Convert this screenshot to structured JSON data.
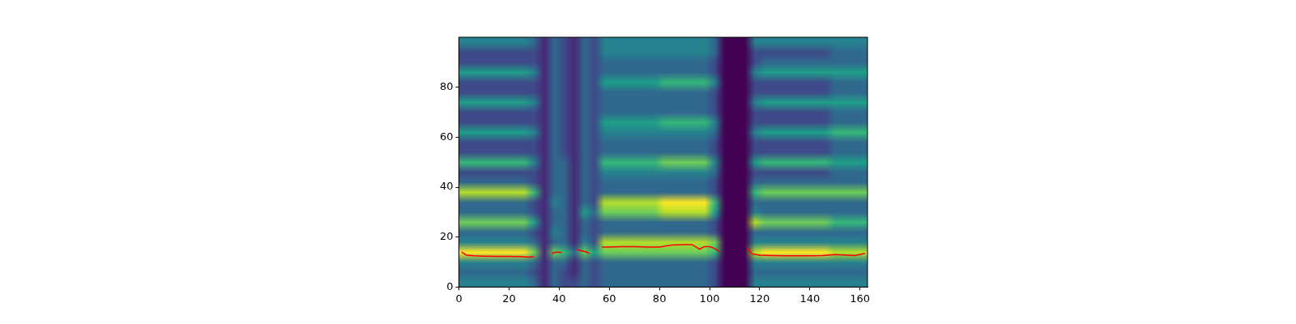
{
  "chart_data": {
    "type": "heatmap",
    "x_edges": [
      0,
      4,
      8,
      12,
      16,
      20,
      24,
      28,
      32,
      36,
      40,
      44,
      48,
      52,
      56,
      60,
      64,
      68,
      72,
      76,
      80,
      84,
      88,
      92,
      96,
      100,
      104,
      108,
      112,
      116,
      120,
      124,
      128,
      132,
      136,
      140,
      144,
      148,
      152,
      156,
      160,
      164
    ],
    "y_edges": [
      0,
      4,
      8,
      12,
      16,
      20,
      24,
      28,
      32,
      36,
      40,
      44,
      48,
      52,
      56,
      60,
      64,
      68,
      72,
      76,
      80,
      84,
      88,
      92,
      96,
      100
    ],
    "zlim": [
      0,
      9
    ],
    "cells": [
      [
        4,
        3,
        4,
        9,
        4,
        3,
        7,
        3,
        3,
        8,
        3,
        2,
        6,
        2,
        2,
        5,
        2,
        2,
        5,
        2,
        2,
        5,
        2,
        2,
        4
      ],
      [
        4,
        3,
        4,
        9,
        4,
        3,
        7,
        3,
        3,
        8,
        3,
        2,
        6,
        2,
        2,
        5,
        2,
        2,
        5,
        2,
        2,
        5,
        2,
        2,
        4
      ],
      [
        4,
        3,
        4,
        9,
        4,
        3,
        7,
        3,
        3,
        8,
        3,
        2,
        6,
        2,
        2,
        5,
        2,
        2,
        5,
        2,
        2,
        5,
        2,
        2,
        4
      ],
      [
        4,
        3,
        4,
        9,
        4,
        3,
        7,
        3,
        3,
        8,
        3,
        2,
        6,
        2,
        2,
        5,
        2,
        2,
        5,
        2,
        2,
        5,
        2,
        2,
        4
      ],
      [
        4,
        3,
        4,
        9,
        4,
        3,
        7,
        3,
        3,
        8,
        3,
        2,
        6,
        2,
        2,
        5,
        2,
        2,
        5,
        2,
        2,
        5,
        2,
        2,
        4
      ],
      [
        4,
        3,
        4,
        9,
        4,
        3,
        7,
        3,
        3,
        8,
        3,
        2,
        6,
        2,
        2,
        5,
        2,
        2,
        5,
        2,
        2,
        5,
        2,
        2,
        4
      ],
      [
        4,
        3,
        4,
        9,
        4,
        3,
        7,
        3,
        3,
        8,
        3,
        2,
        6,
        2,
        2,
        5,
        2,
        2,
        5,
        2,
        2,
        5,
        2,
        2,
        4
      ],
      [
        3,
        2,
        3,
        7,
        3,
        2,
        5,
        2,
        2,
        6,
        2,
        2,
        4,
        2,
        2,
        4,
        2,
        2,
        4,
        2,
        2,
        4,
        2,
        2,
        3
      ],
      [
        1,
        1,
        1,
        1,
        1,
        1,
        1,
        1,
        1,
        1,
        1,
        1,
        1,
        1,
        1,
        1,
        1,
        1,
        1,
        1,
        1,
        1,
        1,
        1,
        1
      ],
      [
        3,
        3,
        3,
        7,
        3,
        4,
        3,
        3,
        4,
        3,
        3,
        3,
        3,
        3,
        3,
        3,
        3,
        3,
        3,
        3,
        3,
        3,
        3,
        3,
        3
      ],
      [
        2,
        2,
        3,
        6,
        3,
        3,
        3,
        3,
        3,
        3,
        3,
        3,
        3,
        2,
        2,
        2,
        2,
        2,
        2,
        2,
        2,
        2,
        2,
        2,
        2
      ],
      [
        2,
        1,
        1,
        3,
        1,
        1,
        1,
        1,
        1,
        1,
        1,
        1,
        1,
        1,
        1,
        1,
        1,
        1,
        1,
        1,
        1,
        1,
        1,
        1,
        1
      ],
      [
        3,
        3,
        3,
        7,
        4,
        3,
        3,
        5,
        3,
        3,
        3,
        3,
        3,
        3,
        3,
        3,
        3,
        3,
        3,
        3,
        3,
        3,
        3,
        3,
        3
      ],
      [
        2,
        2,
        2,
        5,
        2,
        2,
        2,
        3,
        2,
        2,
        2,
        2,
        2,
        2,
        2,
        2,
        2,
        2,
        2,
        2,
        2,
        2,
        2,
        2,
        2
      ],
      [
        3,
        3,
        3,
        7,
        8,
        3,
        3,
        7,
        8,
        3,
        3,
        4,
        6,
        3,
        3,
        4,
        5,
        3,
        3,
        3,
        5,
        3,
        3,
        4,
        4
      ],
      [
        3,
        3,
        3,
        7,
        8,
        3,
        3,
        7,
        8,
        3,
        3,
        4,
        6,
        3,
        3,
        4,
        5,
        3,
        3,
        3,
        5,
        3,
        3,
        4,
        4
      ],
      [
        3,
        3,
        3,
        7,
        8,
        3,
        3,
        7,
        8,
        3,
        3,
        4,
        6,
        3,
        3,
        4,
        5,
        3,
        3,
        3,
        5,
        3,
        3,
        4,
        4
      ],
      [
        3,
        3,
        3,
        7,
        8,
        3,
        3,
        7,
        8,
        3,
        3,
        4,
        6,
        3,
        3,
        4,
        5,
        3,
        3,
        3,
        5,
        3,
        3,
        4,
        4
      ],
      [
        3,
        3,
        3,
        7,
        8,
        3,
        3,
        7,
        8,
        3,
        3,
        4,
        6,
        3,
        3,
        4,
        5,
        3,
        3,
        3,
        5,
        3,
        3,
        4,
        4
      ],
      [
        3,
        3,
        3,
        7,
        8,
        3,
        3,
        7,
        8,
        3,
        3,
        4,
        6,
        3,
        3,
        4,
        5,
        3,
        3,
        3,
        5,
        3,
        3,
        4,
        4
      ],
      [
        3,
        3,
        3,
        7,
        8,
        3,
        3,
        8,
        9,
        3,
        3,
        4,
        7,
        3,
        3,
        4,
        6,
        3,
        3,
        3,
        6,
        3,
        3,
        4,
        4
      ],
      [
        3,
        3,
        3,
        7,
        8,
        3,
        3,
        8,
        9,
        3,
        3,
        4,
        7,
        3,
        3,
        4,
        6,
        3,
        3,
        3,
        6,
        3,
        3,
        4,
        4
      ],
      [
        3,
        3,
        3,
        7,
        8,
        3,
        3,
        8,
        9,
        3,
        3,
        4,
        7,
        3,
        3,
        4,
        6,
        3,
        3,
        3,
        6,
        3,
        3,
        4,
        4
      ],
      [
        3,
        3,
        3,
        7,
        8,
        3,
        3,
        8,
        9,
        3,
        3,
        4,
        7,
        3,
        3,
        4,
        6,
        3,
        3,
        3,
        6,
        3,
        3,
        4,
        4
      ],
      [
        3,
        3,
        3,
        7,
        8,
        3,
        3,
        8,
        9,
        3,
        3,
        4,
        7,
        3,
        3,
        4,
        6,
        3,
        3,
        3,
        6,
        3,
        3,
        4,
        4
      ],
      [
        2,
        2,
        2,
        6,
        7,
        2,
        2,
        5,
        6,
        2,
        2,
        3,
        4,
        2,
        2,
        3,
        4,
        2,
        2,
        2,
        4,
        2,
        2,
        3,
        3
      ],
      [
        0,
        0,
        0,
        0,
        0,
        0,
        0,
        0,
        0,
        0,
        0,
        0,
        0,
        0,
        0,
        0,
        0,
        0,
        0,
        0,
        0,
        0,
        0,
        0,
        0
      ],
      [
        0,
        0,
        0,
        0,
        0,
        0,
        0,
        0,
        0,
        0,
        0,
        0,
        0,
        0,
        0,
        0,
        0,
        0,
        0,
        0,
        0,
        0,
        0,
        0,
        0
      ],
      [
        0,
        0,
        0,
        0,
        0,
        0,
        0,
        0,
        0,
        0,
        0,
        0,
        0,
        0,
        0,
        0,
        0,
        0,
        0,
        0,
        0,
        0,
        0,
        0,
        0
      ],
      [
        4,
        3,
        4,
        8,
        4,
        3,
        8,
        4,
        3,
        6,
        3,
        2,
        5,
        2,
        2,
        4,
        2,
        2,
        4,
        2,
        2,
        4,
        2,
        2,
        4
      ],
      [
        4,
        3,
        4,
        9,
        4,
        3,
        7,
        3,
        3,
        7,
        3,
        2,
        6,
        2,
        2,
        5,
        2,
        2,
        5,
        2,
        2,
        5,
        3,
        2,
        4
      ],
      [
        4,
        3,
        4,
        9,
        4,
        3,
        7,
        3,
        3,
        7,
        3,
        2,
        6,
        2,
        2,
        5,
        2,
        2,
        5,
        2,
        2,
        5,
        3,
        2,
        4
      ],
      [
        4,
        3,
        4,
        9,
        4,
        3,
        7,
        3,
        3,
        7,
        3,
        2,
        6,
        2,
        2,
        5,
        2,
        2,
        5,
        2,
        2,
        5,
        3,
        2,
        4
      ],
      [
        4,
        3,
        4,
        9,
        4,
        3,
        7,
        3,
        3,
        7,
        3,
        2,
        6,
        2,
        2,
        5,
        2,
        2,
        5,
        2,
        2,
        5,
        3,
        2,
        4
      ],
      [
        4,
        3,
        4,
        9,
        4,
        3,
        7,
        3,
        3,
        7,
        3,
        2,
        6,
        2,
        2,
        5,
        2,
        2,
        5,
        2,
        2,
        5,
        3,
        2,
        4
      ],
      [
        4,
        3,
        4,
        9,
        4,
        3,
        7,
        3,
        3,
        7,
        3,
        2,
        6,
        2,
        2,
        5,
        2,
        2,
        5,
        2,
        2,
        5,
        3,
        2,
        4
      ],
      [
        4,
        3,
        4,
        9,
        4,
        3,
        7,
        3,
        3,
        7,
        3,
        2,
        6,
        2,
        2,
        5,
        2,
        2,
        5,
        2,
        2,
        5,
        3,
        2,
        4
      ],
      [
        4,
        3,
        4,
        8,
        4,
        3,
        6,
        3,
        3,
        7,
        3,
        3,
        5,
        3,
        3,
        6,
        3,
        3,
        5,
        3,
        3,
        5,
        3,
        3,
        4
      ],
      [
        4,
        3,
        4,
        8,
        4,
        3,
        6,
        3,
        3,
        7,
        3,
        3,
        5,
        3,
        3,
        6,
        3,
        3,
        5,
        3,
        3,
        5,
        3,
        3,
        4
      ],
      [
        4,
        3,
        4,
        8,
        4,
        3,
        6,
        3,
        3,
        7,
        3,
        3,
        5,
        3,
        3,
        6,
        3,
        3,
        5,
        3,
        3,
        5,
        3,
        3,
        4
      ],
      [
        4,
        3,
        4,
        8,
        4,
        3,
        6,
        3,
        3,
        7,
        3,
        3,
        5,
        3,
        3,
        6,
        3,
        3,
        5,
        3,
        3,
        5,
        3,
        3,
        4
      ]
    ],
    "series": [
      {
        "type": "line",
        "color": "red",
        "x": [
          1,
          3,
          6,
          10,
          15,
          20,
          25,
          28,
          30,
          31,
          37,
          39,
          41,
          42,
          47,
          49,
          51,
          52,
          53,
          57,
          60,
          65,
          70,
          75,
          80,
          85,
          90,
          93,
          96,
          98,
          100,
          102,
          104,
          105,
          115,
          117,
          120,
          125,
          130,
          135,
          140,
          145,
          150,
          155,
          158,
          162
        ],
        "values": [
          14,
          12.8,
          12.5,
          12.4,
          12.3,
          12.3,
          12.2,
          12.0,
          12.2,
          null,
          13.5,
          14,
          13.8,
          null,
          15,
          14.5,
          14,
          13.5,
          null,
          16,
          16,
          16.2,
          16.2,
          16,
          16,
          16.8,
          17,
          17,
          15.2,
          16.2,
          16.2,
          15.5,
          14,
          null,
          15.5,
          13.3,
          12.8,
          12.6,
          12.5,
          12.5,
          12.5,
          12.6,
          13,
          12.8,
          12.6,
          13.5
        ]
      }
    ],
    "xlim": [
      0,
      163
    ],
    "ylim": [
      0,
      100
    ],
    "xticks": [
      0,
      20,
      40,
      60,
      80,
      100,
      120,
      140,
      160
    ],
    "yticks": [
      0,
      20,
      40,
      60,
      80
    ],
    "grid": false
  }
}
